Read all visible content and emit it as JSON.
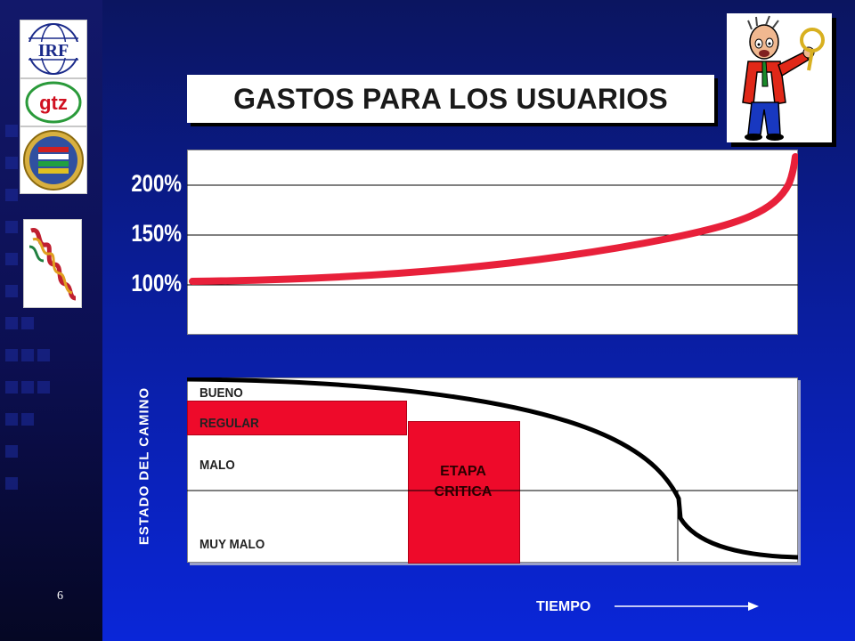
{
  "slide": {
    "page_number": "6",
    "title": "GASTOS PARA LOS USUARIOS"
  },
  "logos": {
    "irf_text": "IRF",
    "gtz_text": "gtz"
  },
  "colors": {
    "background": "#0a26d8",
    "curve_top": "#e8203a",
    "zone_red": "#ee0a2a",
    "curve_bottom": "#000000"
  },
  "top_chart": {
    "y_ticks": [
      "200%",
      "150%",
      "100%"
    ],
    "series_name": "",
    "curve": "increasing cost to users over time, from 100% rising exponentially past 200%"
  },
  "bottom_chart": {
    "y_label": "ESTADO DEL CAMINO",
    "x_label": "TIEMPO",
    "zones": [
      "BUENO",
      "REGULAR",
      "MALO",
      "MUY MALO"
    ],
    "critical_stage": [
      "ETAPA",
      "CRITICA"
    ]
  }
}
